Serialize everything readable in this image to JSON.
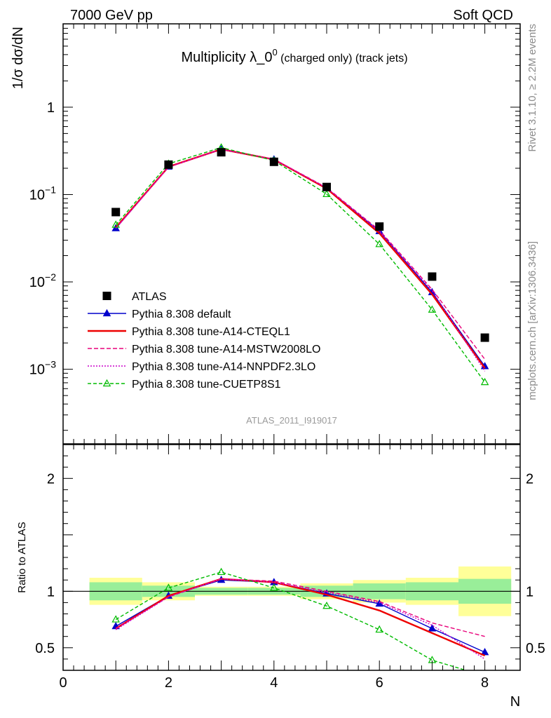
{
  "header": {
    "left": "7000 GeV pp",
    "right": "Soft QCD"
  },
  "side_labels": {
    "rivet": "Rivet 3.1.10, ≥ 2.2M events",
    "mcplots": "mcplots.cern.ch [arXiv:1306.3436]"
  },
  "chart_data": {
    "type": "line",
    "title": "Multiplicity λ_0⁰ (charged only) (track jets)",
    "analysis_id": "ATLAS_2011_I919017",
    "xlabel": "N",
    "ylabel_main": "1/σ dσ/dN",
    "ylabel_ratio": "Ratio to ATLAS",
    "x": [
      1,
      2,
      3,
      4,
      5,
      6,
      7,
      8
    ],
    "xlim": [
      0,
      8.67
    ],
    "main_ylim": [
      0.00014,
      9
    ],
    "main_yscale": "log",
    "main_yticks": [
      {
        "value": 1,
        "base": "1",
        "exp": ""
      },
      {
        "value": 0.1,
        "base": "10",
        "exp": "−1"
      },
      {
        "value": 0.01,
        "base": "10",
        "exp": "−2"
      },
      {
        "value": 0.001,
        "base": "10",
        "exp": "−3"
      }
    ],
    "ratio_ylim": [
      0.3,
      2.3
    ],
    "ratio_yticks": [
      {
        "value": 0.5,
        "label": "0.5"
      },
      {
        "value": 1,
        "label": "1"
      },
      {
        "value": 2,
        "label": "2"
      }
    ],
    "xticks": [
      {
        "value": 0,
        "label": "0"
      },
      {
        "value": 2,
        "label": "2"
      },
      {
        "value": 4,
        "label": "4"
      },
      {
        "value": 6,
        "label": "6"
      },
      {
        "value": 8,
        "label": "8"
      }
    ],
    "data": {
      "name": "ATLAS",
      "values": [
        0.063,
        0.22,
        0.305,
        0.237,
        0.122,
        0.043,
        0.0115,
        0.0023
      ],
      "band_inner": [
        0.08,
        0.05,
        0.03,
        0.03,
        0.05,
        0.07,
        0.08,
        0.11
      ],
      "band_outer": [
        0.12,
        0.08,
        0.04,
        0.04,
        0.07,
        0.1,
        0.12,
        0.22
      ]
    },
    "series": [
      {
        "name": "Pythia 8.308 default",
        "color": "#0000cc",
        "dash": "",
        "marker": "filled-triangle",
        "values": [
          0.041,
          0.208,
          0.328,
          0.252,
          0.118,
          0.038,
          0.0076,
          0.00108
        ],
        "ratio": [
          0.69,
          0.96,
          1.1,
          1.08,
          0.98,
          0.89,
          0.67,
          0.46
        ]
      },
      {
        "name": "Pythia 8.308 tune-A14-CTEQL1",
        "color": "#ee0000",
        "dash": "",
        "marker": "none",
        "values": [
          0.042,
          0.208,
          0.33,
          0.252,
          0.117,
          0.036,
          0.0072,
          0.00103
        ],
        "ratio": [
          0.67,
          0.96,
          1.11,
          1.08,
          0.97,
          0.83,
          0.63,
          0.43
        ]
      },
      {
        "name": "Pythia 8.308 tune-A14-MSTW2008LO",
        "color": "#e8007a",
        "dash": "6,3",
        "marker": "none",
        "values": [
          0.041,
          0.207,
          0.33,
          0.254,
          0.12,
          0.039,
          0.0082,
          0.0013
        ],
        "ratio": [
          0.67,
          0.95,
          1.11,
          1.09,
          1.0,
          0.91,
          0.72,
          0.6
        ]
      },
      {
        "name": "Pythia 8.308 tune-A14-NNPDF2.3LO",
        "color": "#cc00cc",
        "dash": "2,2",
        "marker": "none",
        "values": [
          0.041,
          0.206,
          0.33,
          0.252,
          0.119,
          0.038,
          0.0079,
          0.00095
        ],
        "ratio": [
          0.66,
          0.95,
          1.11,
          1.08,
          0.99,
          0.9,
          0.7,
          0.4
        ]
      },
      {
        "name": "Pythia 8.308 tune-CUETP8S1",
        "color": "#00bb00",
        "dash": "5,3",
        "marker": "open-triangle",
        "values": [
          0.045,
          0.225,
          0.345,
          0.245,
          0.101,
          0.027,
          0.0048,
          0.00071
        ],
        "ratio": [
          0.75,
          1.03,
          1.17,
          1.03,
          0.87,
          0.66,
          0.39,
          0.25
        ]
      }
    ],
    "legend_placement": "lower-left"
  }
}
